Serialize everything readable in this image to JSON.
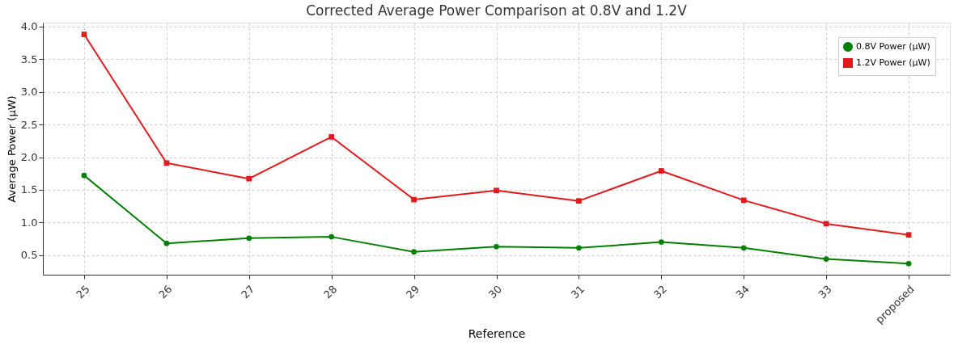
{
  "chart_data": {
    "type": "line",
    "title": "Corrected Average Power Comparison at 0.8V and 1.2V",
    "xlabel": "Reference",
    "ylabel": "Average Power (µW)",
    "categories": [
      "25",
      "26",
      "27",
      "28",
      "29",
      "30",
      "31",
      "32",
      "34",
      "33",
      "proposed"
    ],
    "series": [
      {
        "name": "0.8V Power (µW)",
        "color": "#008000",
        "marker": "circle",
        "values": [
          1.72,
          0.68,
          0.76,
          0.78,
          0.55,
          0.63,
          0.61,
          0.7,
          0.61,
          0.44,
          0.37
        ]
      },
      {
        "name": "1.2V Power (µW)",
        "color": "#e31a1c",
        "marker": "square",
        "values": [
          3.88,
          1.91,
          1.67,
          2.31,
          1.35,
          1.49,
          1.33,
          1.79,
          1.34,
          0.98,
          0.81
        ]
      }
    ],
    "ylim": [
      0.2,
      4.06
    ],
    "yticks": [
      0.5,
      {
        "value": 1,
        "label": "1.0"
      },
      1.5,
      {
        "value": 2,
        "label": "2.0"
      },
      2.5,
      {
        "value": 3,
        "label": "3.0"
      },
      3.5,
      {
        "value": 4,
        "label": "4.0"
      }
    ],
    "grid": true,
    "legend": "top right",
    "line_style": "solid"
  }
}
